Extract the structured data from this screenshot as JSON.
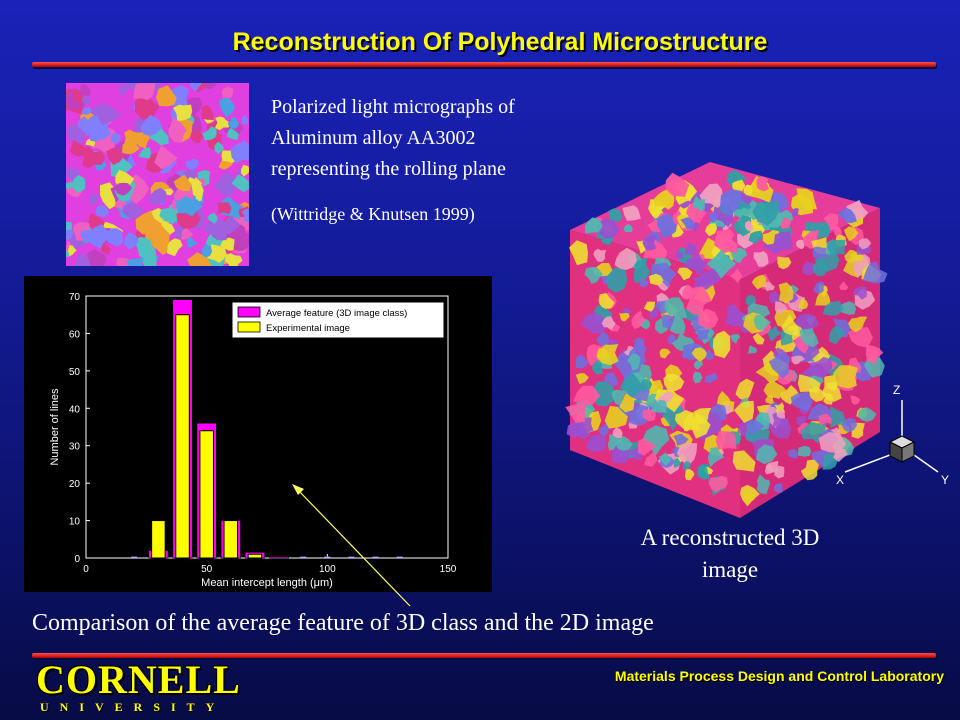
{
  "title": "Reconstruction Of Polyhedral Microstructure",
  "caption": {
    "line1": "Polarized light micrographs of",
    "line2": "Aluminum alloy AA3002",
    "line3": "representing the rolling plane",
    "citation": "(Wittridge & Knutsen 1999)"
  },
  "cube": {
    "caption_line1": "A reconstructed 3D",
    "caption_line2": "image",
    "axes": {
      "z": "Z",
      "x": "X",
      "y": "Y"
    }
  },
  "comparison_text": "Comparison of the average feature of 3D class and the 2D image",
  "footer": {
    "lab": "Materials Process Design and Control Laboratory",
    "logo_word": "CORNELL",
    "logo_sub": "UNIVERSITY"
  },
  "colors": {
    "title": "#ffff00",
    "accent_bar": "#e01010",
    "series_3d": "#ff00ff",
    "series_exp": "#ffff00"
  },
  "chart_data": {
    "type": "bar",
    "xlabel": "Mean intercept length (μm)",
    "ylabel": "Number of lines",
    "xlim": [
      0,
      150
    ],
    "ylim": [
      0,
      70
    ],
    "xticks": [
      0,
      50,
      100,
      150
    ],
    "yticks": [
      0,
      10,
      20,
      30,
      40,
      50,
      60,
      70
    ],
    "legend_position": "top-right",
    "x": [
      20,
      30,
      40,
      50,
      60,
      70,
      80,
      90,
      100,
      110,
      120,
      130
    ],
    "series": [
      {
        "name": "Average feature (3D image class)",
        "values": [
          0,
          2,
          69,
          36,
          10,
          1.5,
          0.3,
          0,
          0,
          0,
          0,
          0
        ]
      },
      {
        "name": "Experimental image",
        "values": [
          0,
          10,
          65,
          34,
          10,
          1,
          0,
          0,
          0,
          0,
          0,
          0
        ]
      }
    ]
  }
}
